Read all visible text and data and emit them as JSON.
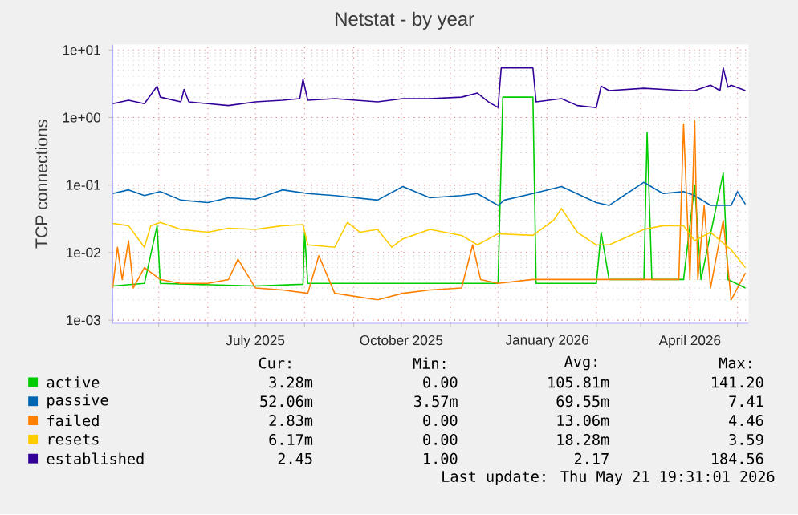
{
  "chart_data": {
    "type": "line",
    "title": "Netstat - by year",
    "ylabel": "TCP connections",
    "log": "y",
    "grid": true,
    "legend": "bottom",
    "xlim": [
      "2025-04-02",
      "2026-05-08"
    ],
    "ylim": [
      0.0009,
      12
    ],
    "yticks": [
      {
        "value": 0.001,
        "label": "1e-03"
      },
      {
        "value": 0.01,
        "label": "1e-02"
      },
      {
        "value": 0.1,
        "label": "1e-01"
      },
      {
        "value": 1,
        "label": "1e+00"
      },
      {
        "value": 10,
        "label": "1e+01"
      }
    ],
    "xticks": [
      {
        "value": "2025-05-01",
        "label": null
      },
      {
        "value": "2025-06-01",
        "label": null
      },
      {
        "value": "2025-07-01",
        "label": "July 2025"
      },
      {
        "value": "2025-08-01",
        "label": null
      },
      {
        "value": "2025-09-01",
        "label": null
      },
      {
        "value": "2025-10-01",
        "label": "October 2025"
      },
      {
        "value": "2025-11-01",
        "label": null
      },
      {
        "value": "2025-12-01",
        "label": null
      },
      {
        "value": "2026-01-01",
        "label": "January 2026"
      },
      {
        "value": "2026-02-01",
        "label": null
      },
      {
        "value": "2026-03-01",
        "label": null
      },
      {
        "value": "2026-04-01",
        "label": "April 2026"
      },
      {
        "value": "2026-05-01",
        "label": null
      }
    ],
    "series": [
      {
        "name": "active",
        "color": "#00cc00",
        "x": [
          "2025-04-02",
          "2025-04-22",
          "2025-04-30",
          "2025-05-02",
          "2025-07-01",
          "2025-07-31",
          "2025-08-01",
          "2025-08-03",
          "2025-09-16",
          "2025-10-02",
          "2025-12-01",
          "2025-12-04",
          "2025-12-23",
          "2025-12-25",
          "2026-02-01",
          "2026-02-04",
          "2026-02-09",
          "2026-03-03",
          "2026-03-05",
          "2026-03-08",
          "2026-03-28",
          "2026-04-04",
          "2026-04-08",
          "2026-04-22",
          "2026-04-25",
          "2026-05-06"
        ],
        "values": [
          0.0032,
          0.0035,
          0.025,
          0.0035,
          0.0032,
          0.0034,
          0.02,
          0.0035,
          0.0035,
          0.0035,
          0.0035,
          2.0,
          2.0,
          0.0035,
          0.0035,
          0.02,
          0.004,
          0.004,
          0.6,
          0.004,
          0.004,
          0.1,
          0.004,
          0.15,
          0.004,
          0.003
        ]
      },
      {
        "name": "passive",
        "color": "#0066b3",
        "x": [
          "2025-04-02",
          "2025-04-12",
          "2025-04-22",
          "2025-05-02",
          "2025-05-15",
          "2025-06-01",
          "2025-06-14",
          "2025-07-01",
          "2025-07-18",
          "2025-08-03",
          "2025-08-20",
          "2025-09-16",
          "2025-10-02",
          "2025-10-19",
          "2025-11-08",
          "2025-11-18",
          "2025-12-01",
          "2025-12-05",
          "2025-12-23",
          "2026-01-10",
          "2026-02-01",
          "2026-02-09",
          "2026-03-03",
          "2026-03-15",
          "2026-03-28",
          "2026-04-04",
          "2026-04-14",
          "2026-04-27",
          "2026-05-01",
          "2026-05-06"
        ],
        "values": [
          0.075,
          0.085,
          0.07,
          0.08,
          0.06,
          0.055,
          0.065,
          0.062,
          0.085,
          0.075,
          0.07,
          0.06,
          0.095,
          0.065,
          0.07,
          0.075,
          0.05,
          0.06,
          0.075,
          0.095,
          0.055,
          0.05,
          0.11,
          0.075,
          0.08,
          0.07,
          0.05,
          0.05,
          0.08,
          0.052
        ]
      },
      {
        "name": "failed",
        "color": "#ff8000",
        "x": [
          "2025-04-02",
          "2025-04-05",
          "2025-04-08",
          "2025-04-12",
          "2025-04-15",
          "2025-04-22",
          "2025-05-02",
          "2025-05-15",
          "2025-06-01",
          "2025-06-14",
          "2025-06-20",
          "2025-07-01",
          "2025-07-18",
          "2025-08-03",
          "2025-08-10",
          "2025-08-20",
          "2025-09-16",
          "2025-10-02",
          "2025-10-19",
          "2025-11-08",
          "2025-11-15",
          "2025-11-20",
          "2025-12-01",
          "2025-12-23",
          "2026-01-10",
          "2026-02-01",
          "2026-03-03",
          "2026-03-15",
          "2026-03-25",
          "2026-03-28",
          "2026-04-01",
          "2026-04-04",
          "2026-04-06",
          "2026-04-10",
          "2026-04-14",
          "2026-04-22",
          "2026-04-27",
          "2026-05-06"
        ],
        "values": [
          0.003,
          0.012,
          0.004,
          0.015,
          0.003,
          0.006,
          0.004,
          0.0035,
          0.0035,
          0.004,
          0.008,
          0.003,
          0.0028,
          0.0025,
          0.009,
          0.0025,
          0.002,
          0.0025,
          0.0028,
          0.003,
          0.013,
          0.004,
          0.0035,
          0.004,
          0.004,
          0.004,
          0.004,
          0.004,
          0.004,
          0.8,
          0.004,
          0.9,
          0.004,
          0.05,
          0.003,
          0.03,
          0.002,
          0.005
        ]
      },
      {
        "name": "resets",
        "color": "#ffcc00",
        "x": [
          "2025-04-02",
          "2025-04-12",
          "2025-04-22",
          "2025-04-26",
          "2025-05-02",
          "2025-05-15",
          "2025-06-01",
          "2025-06-14",
          "2025-07-01",
          "2025-07-18",
          "2025-07-31",
          "2025-08-03",
          "2025-08-20",
          "2025-08-28",
          "2025-09-05",
          "2025-09-16",
          "2025-09-25",
          "2025-10-02",
          "2025-10-19",
          "2025-11-08",
          "2025-11-18",
          "2025-12-01",
          "2025-12-23",
          "2026-01-05",
          "2026-01-10",
          "2026-01-20",
          "2026-02-01",
          "2026-02-09",
          "2026-03-03",
          "2026-03-15",
          "2026-03-28",
          "2026-04-04",
          "2026-04-14",
          "2026-04-27",
          "2026-05-06"
        ],
        "values": [
          0.027,
          0.025,
          0.012,
          0.025,
          0.028,
          0.022,
          0.02,
          0.023,
          0.022,
          0.025,
          0.026,
          0.013,
          0.012,
          0.028,
          0.02,
          0.022,
          0.012,
          0.016,
          0.022,
          0.018,
          0.013,
          0.019,
          0.018,
          0.03,
          0.045,
          0.02,
          0.013,
          0.013,
          0.022,
          0.025,
          0.025,
          0.015,
          0.02,
          0.011,
          0.006
        ]
      },
      {
        "name": "established",
        "color": "#330099",
        "x": [
          "2025-04-02",
          "2025-04-12",
          "2025-04-22",
          "2025-04-30",
          "2025-05-02",
          "2025-05-15",
          "2025-05-17",
          "2025-05-20",
          "2025-06-01",
          "2025-06-14",
          "2025-07-01",
          "2025-07-18",
          "2025-07-29",
          "2025-07-31",
          "2025-08-03",
          "2025-08-20",
          "2025-09-16",
          "2025-10-02",
          "2025-10-19",
          "2025-11-08",
          "2025-11-18",
          "2025-11-25",
          "2025-12-01",
          "2025-12-03",
          "2025-12-23",
          "2025-12-25",
          "2026-01-10",
          "2026-01-20",
          "2026-02-01",
          "2026-02-04",
          "2026-02-09",
          "2026-03-03",
          "2026-03-15",
          "2026-03-28",
          "2026-04-04",
          "2026-04-14",
          "2026-04-20",
          "2026-04-22",
          "2026-04-25",
          "2026-04-27",
          "2026-05-06"
        ],
        "values": [
          1.6,
          1.8,
          1.6,
          2.9,
          2.0,
          1.7,
          2.6,
          1.7,
          1.6,
          1.5,
          1.7,
          1.8,
          1.9,
          3.7,
          1.8,
          1.9,
          1.7,
          1.9,
          1.9,
          2.0,
          2.3,
          1.7,
          1.4,
          5.4,
          5.4,
          1.7,
          1.9,
          1.5,
          1.4,
          2.9,
          2.5,
          2.7,
          2.6,
          2.5,
          2.5,
          3.0,
          2.5,
          5.4,
          2.8,
          3.0,
          2.5
        ]
      }
    ],
    "annotations": [
      "Cur:",
      "Min:",
      "Avg:",
      "Max:",
      "3.28m",
      "0.00",
      "105.81m",
      "141.20",
      "52.06m",
      "3.57m",
      "69.55m",
      "7.41",
      "2.83m",
      "0.00",
      "13.06m",
      "4.46",
      "6.17m",
      "0.00",
      "18.28m",
      "3.59",
      "2.45",
      "1.00",
      "2.17",
      "184.56",
      "Last update: Thu May 21 19:31:01 2026"
    ]
  }
}
